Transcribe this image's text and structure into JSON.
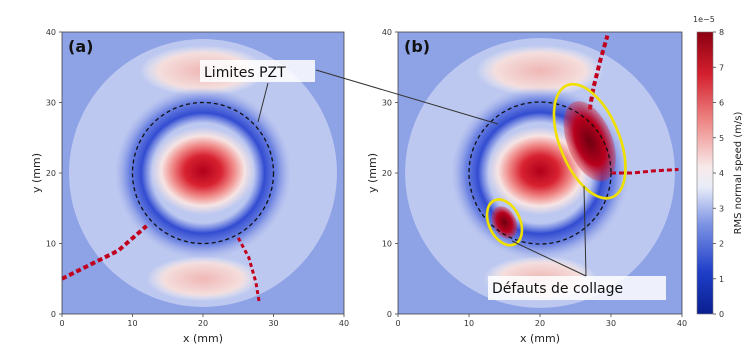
{
  "chart_data": [
    {
      "type": "heatmap",
      "panel_label": "(a)",
      "xlabel": "x (mm)",
      "ylabel": "y (mm)",
      "xlim": [
        0,
        40
      ],
      "ylim": [
        0,
        40
      ],
      "x_ticks": [
        "0",
        "10",
        "20",
        "30",
        "40"
      ],
      "y_ticks": [
        "0",
        "10",
        "20",
        "30",
        "40"
      ],
      "colormap": "blue-white-red",
      "pzt_circle": {
        "center": [
          20,
          20
        ],
        "radius": 10,
        "style": "dashed"
      }
    },
    {
      "type": "heatmap",
      "panel_label": "(b)",
      "xlabel": "x (mm)",
      "ylabel": "y (mm)",
      "xlim": [
        0,
        40
      ],
      "ylim": [
        0,
        40
      ],
      "x_ticks": [
        "0",
        "10",
        "20",
        "30",
        "40"
      ],
      "y_ticks": [
        "0",
        "10",
        "20",
        "30",
        "40"
      ],
      "colormap": "blue-white-red",
      "pzt_circle": {
        "center": [
          20,
          20
        ],
        "radius": 10,
        "style": "dashed"
      },
      "defects": [
        {
          "center": [
            27,
            24.5
          ],
          "rx": 4.2,
          "ry": 8.5,
          "rotation_deg": -22,
          "outline": "yellow"
        },
        {
          "center": [
            15,
            13
          ],
          "rx": 2.2,
          "ry": 3.4,
          "rotation_deg": -25,
          "outline": "yellow"
        }
      ]
    }
  ],
  "annotations": {
    "pzt_limits": "Limites PZT",
    "bond_defects": "Défauts de collage"
  },
  "colorbar": {
    "label": "RMS normal speed (m/s)",
    "exponent": "1e−5",
    "ticks": [
      "0",
      "1",
      "2",
      "3",
      "4",
      "5",
      "6",
      "7",
      "8"
    ],
    "range": [
      0,
      8
    ]
  },
  "colors": {
    "low": "#0a1f8f",
    "mid": "#f3f3f5",
    "high": "#a00016",
    "defect_outline": "#f0e000",
    "pzt_line": "#111111"
  }
}
